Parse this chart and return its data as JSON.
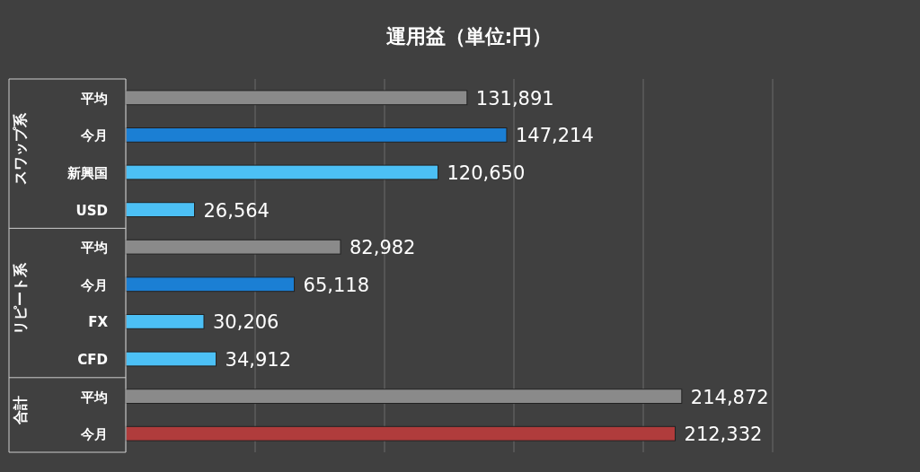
{
  "chart_data": {
    "type": "bar",
    "orientation": "horizontal",
    "title": "運用益（単位:円）",
    "categories": [
      "平均",
      "今月",
      "新興国",
      "USD",
      "平均",
      "今月",
      "FX",
      "CFD",
      "平均",
      "今月"
    ],
    "values": [
      131891,
      147214,
      120650,
      26564,
      82982,
      65118,
      30206,
      34912,
      214872,
      212332
    ],
    "colors": [
      "#8a8a8a",
      "#1b7fd4",
      "#4cc0f5",
      "#4cc0f5",
      "#8a8a8a",
      "#1b7fd4",
      "#4cc0f5",
      "#4cc0f5",
      "#8a8a8a",
      "#b03c3c"
    ],
    "value_labels": [
      "131,891",
      "147,214",
      "120,650",
      "26,564",
      "82,982",
      "65,118",
      "30,206",
      "34,912",
      "214,872",
      "212,332"
    ],
    "annotations": [
      "スワップ系",
      "リピート系",
      "合計"
    ],
    "xlim": [
      0,
      250000
    ],
    "xticks": [
      {
        "value": 0,
        "label": null
      },
      {
        "value": 50000,
        "label": null
      },
      {
        "value": 100000,
        "label": null
      },
      {
        "value": 150000,
        "label": null
      },
      {
        "value": 200000,
        "label": null
      },
      {
        "value": 250000,
        "label": null
      }
    ],
    "tick_labels": "y",
    "grid": "x"
  }
}
